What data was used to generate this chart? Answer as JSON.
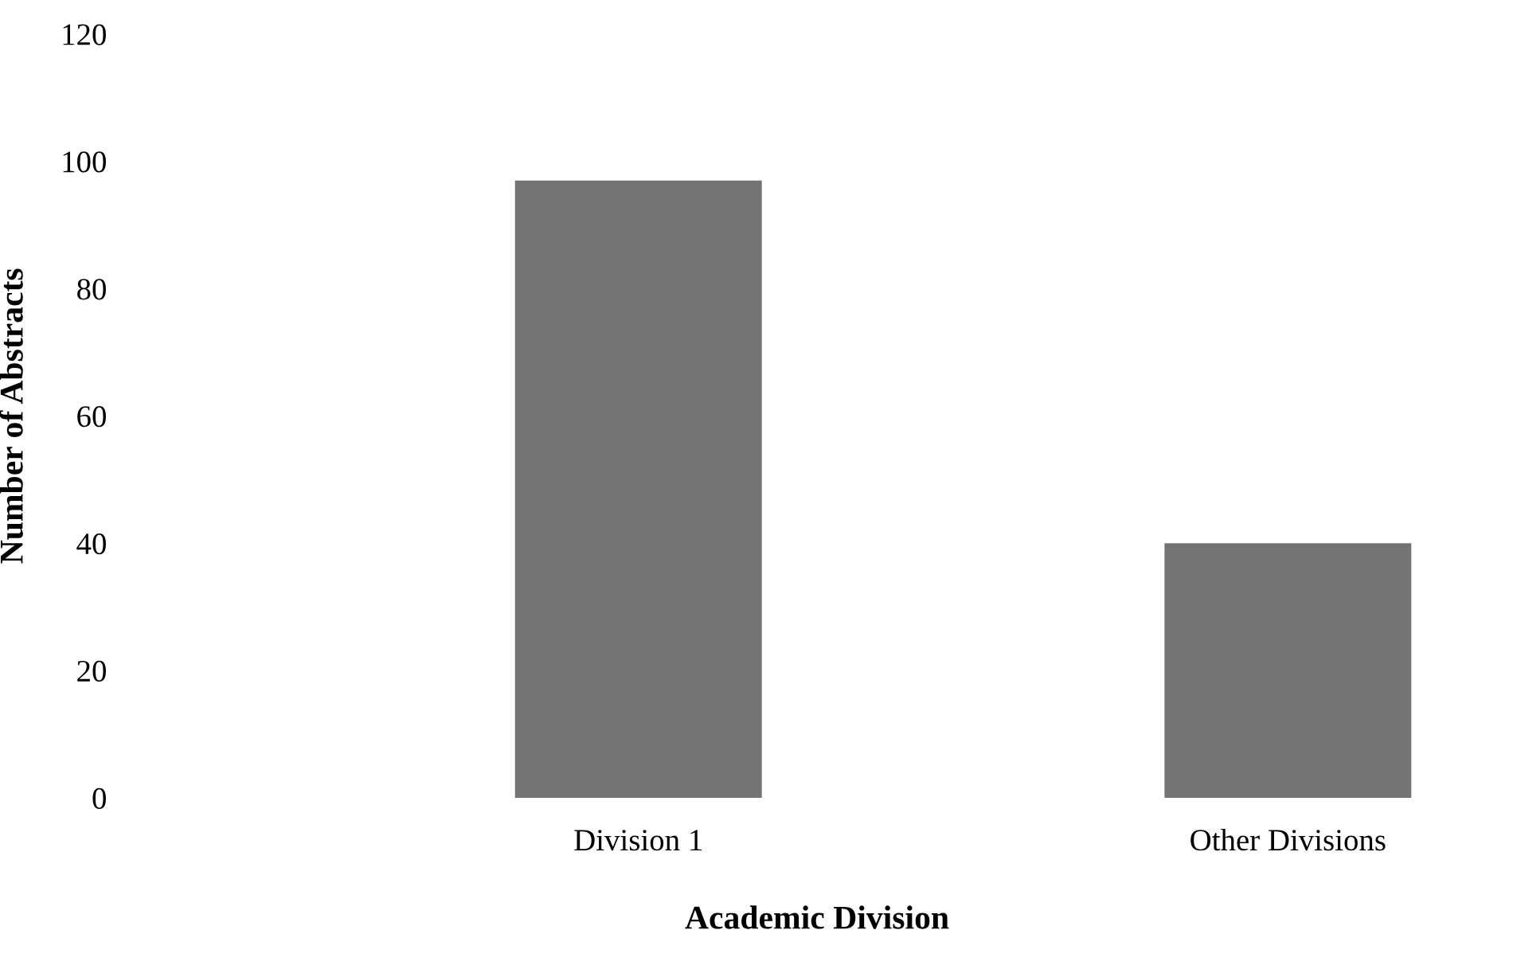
{
  "chart_data": {
    "type": "bar",
    "xlabel": "Academic Division",
    "ylabel": "Number of Abstracts",
    "categories": [
      "Division 1",
      "Other Divisions"
    ],
    "values": [
      97,
      40
    ],
    "color": "#737373",
    "ylim": [
      0,
      120
    ],
    "yticks": [
      0,
      20,
      40,
      60,
      80,
      100,
      120
    ],
    "grid": false,
    "legend": false
  }
}
